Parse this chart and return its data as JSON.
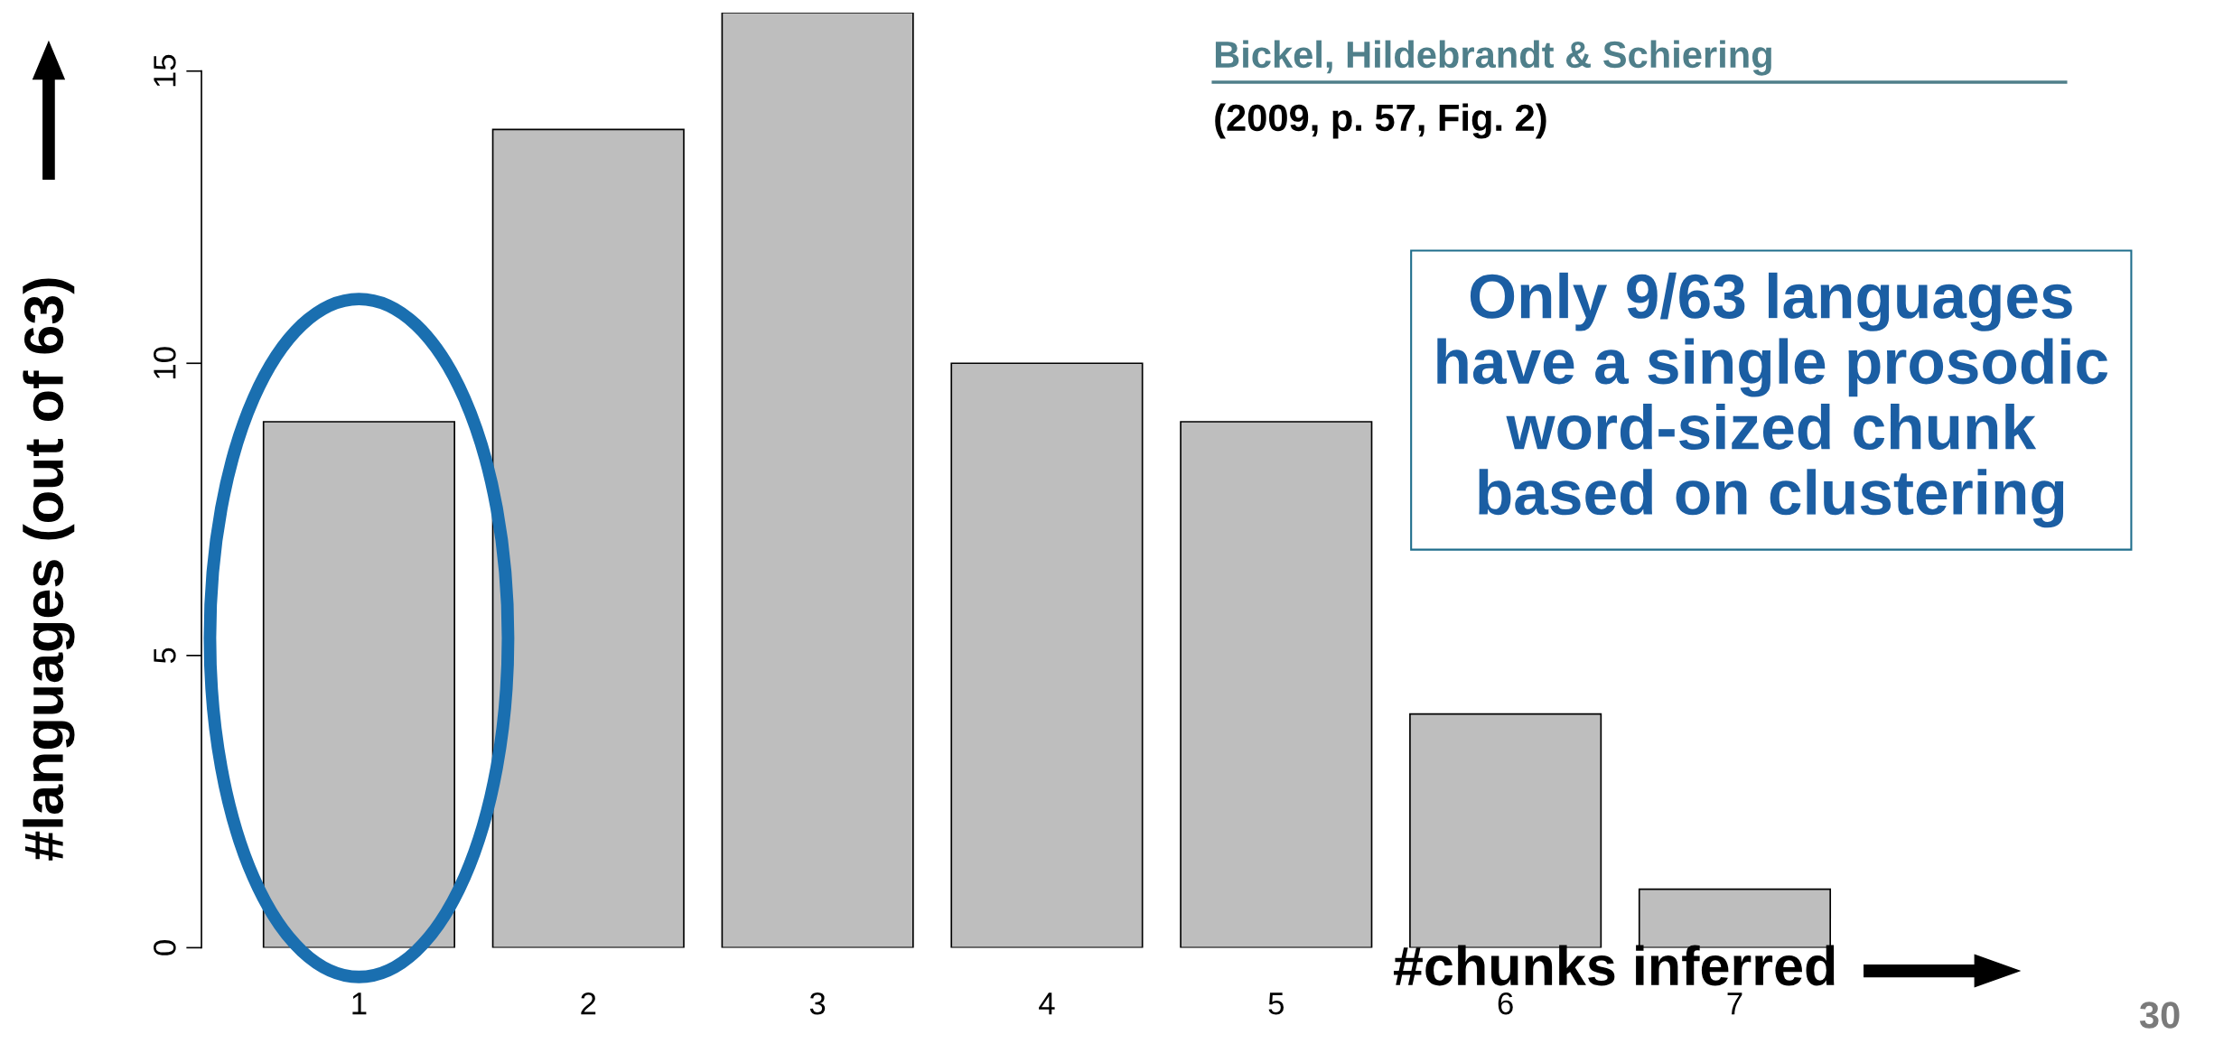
{
  "chart_data": {
    "type": "bar",
    "categories": [
      "1",
      "2",
      "3",
      "4",
      "5",
      "6",
      "7"
    ],
    "values": [
      9,
      14,
      16,
      10,
      9,
      4,
      1
    ],
    "color": "#bebebe",
    "xlabel": "#chunks inferred",
    "ylabel": "#languages (out of 63)",
    "ylim": [
      0,
      16
    ],
    "yticks": [
      0,
      5,
      10,
      15
    ],
    "grid": false,
    "annotations": [
      "Bickel, Hildebrandt & Schiering",
      "(2009, p. 57, Fig. 2)",
      "Only 9/63 languages\nhave a single prosodic\nword-sized chunk\nbased on clustering",
      "30"
    ]
  }
}
